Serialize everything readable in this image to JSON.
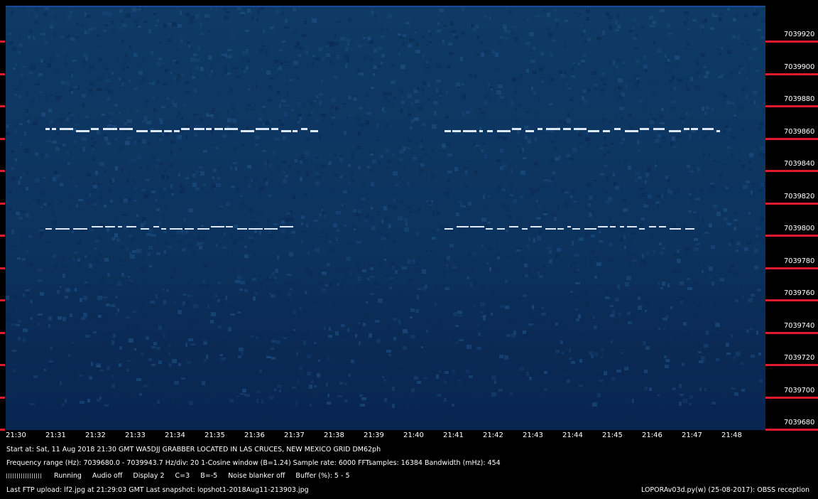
{
  "frequency_scale": {
    "labels": [
      "7039920",
      "7039900",
      "7039880",
      "7039860",
      "7039840",
      "7039820",
      "7039800",
      "7039780",
      "7039760",
      "7039740",
      "7039720",
      "7039700",
      "7039680"
    ]
  },
  "time_axis": {
    "labels": [
      "21:30",
      "21:31",
      "21:32",
      "21:33",
      "21:34",
      "21:35",
      "21:36",
      "21:37",
      "21:38",
      "21:39",
      "21:40",
      "21:41",
      "21:42",
      "21:43",
      "21:44",
      "21:45",
      "21:46",
      "21:47",
      "21:48"
    ]
  },
  "info": {
    "line1": "Start at: Sat, 11 Aug 2018 21:30 GMT    WA5DJJ GRABBER LOCATED IN LAS CRUCES, NEW MEXICO GRID DM62ph",
    "line2": "Frequency range (Hz): 7039680.0 - 7039943.7    Hz/div: 20    1-Cosine window (B=1.24)    Sample rate: 6000    FFTsamples: 16384    Bandwidth (mHz): 454",
    "status": {
      "running": "Running",
      "audio": "Audio off",
      "display": "Display 2",
      "c": "C=3",
      "b": "B=-5",
      "noise_blanker": "Noise blanker off",
      "buffer": "Buffer (%): 5 - 5"
    },
    "line4": "Last FTP upload: lf2.jpg at 21:29:03 GMT    Last snapshot: lopshot1-2018Aug11-213903.jpg",
    "footer_right": "LOPORAv03d.py(w) (25-08-2017): OBSS reception"
  },
  "colors": {
    "waterfall_bg": "#0c335e",
    "tick_red": "#e01a2c",
    "signal": "#dfe8f5"
  }
}
